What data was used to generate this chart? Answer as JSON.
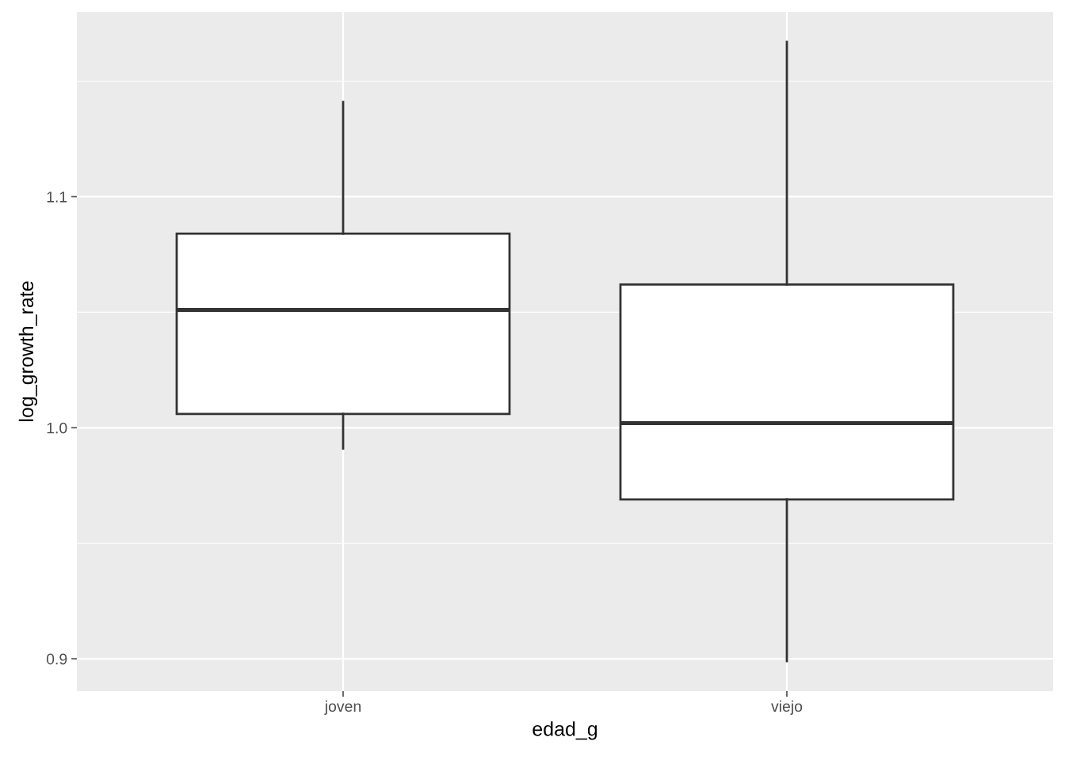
{
  "chart_data": {
    "type": "box",
    "xlabel": "edad_g",
    "ylabel": "log_growth_rate",
    "categories": [
      "joven",
      "viejo"
    ],
    "boxes": [
      {
        "low": 0.991,
        "q1": 1.006,
        "median": 1.051,
        "q3": 1.084,
        "high": 1.141
      },
      {
        "low": 0.899,
        "q1": 0.969,
        "median": 1.002,
        "q3": 1.062,
        "high": 1.167
      }
    ],
    "ylim": [
      0.886,
      1.18
    ],
    "yticks": [
      0.9,
      {
        "value": 1.0,
        "label": "1.0"
      },
      1.1
    ],
    "grid": true
  }
}
